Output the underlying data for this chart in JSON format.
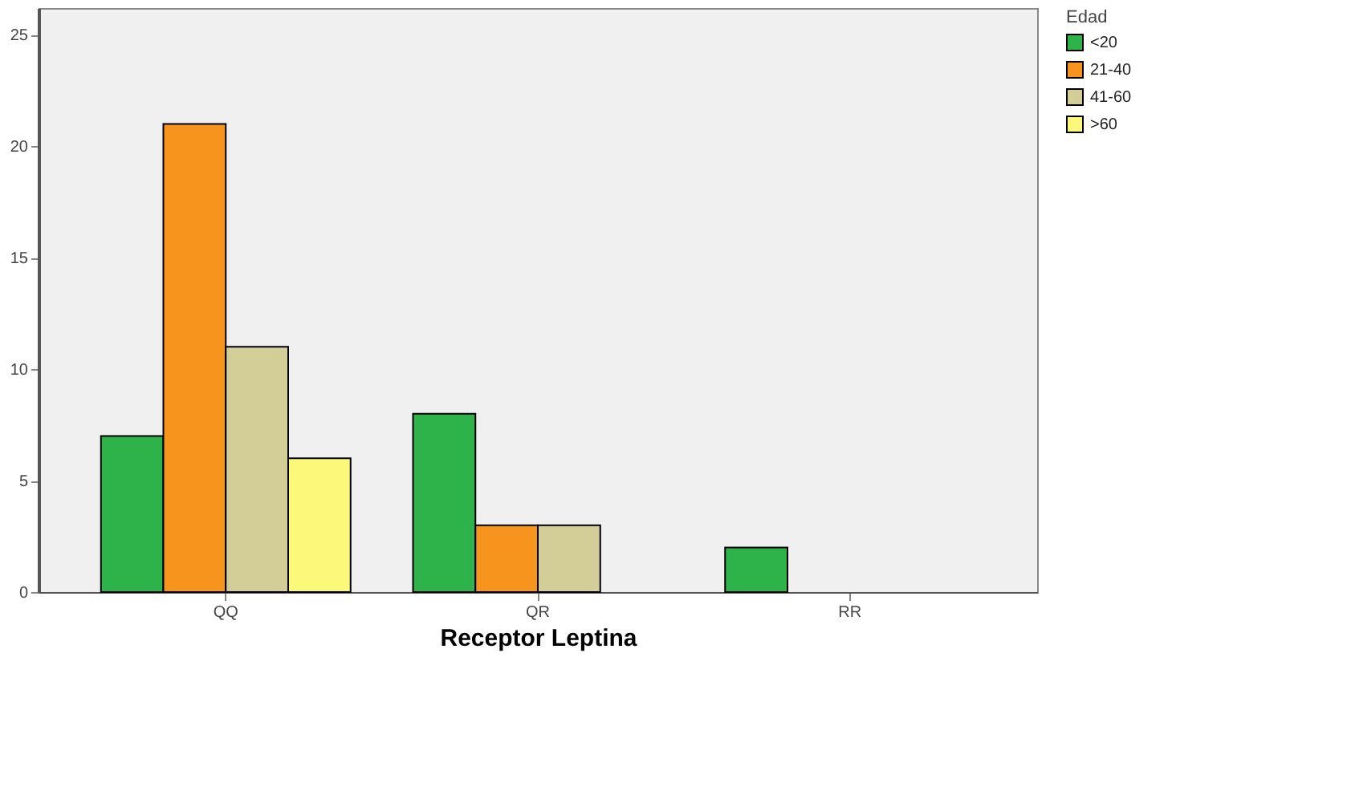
{
  "chart_data": {
    "type": "bar",
    "xlabel": "Receptor Leptina",
    "legend_title": "Edad",
    "categories": [
      "QQ",
      "QR",
      "RR"
    ],
    "series": [
      {
        "name": "<20",
        "color": "#2db34a",
        "values": [
          7,
          8,
          2
        ]
      },
      {
        "name": "21-40",
        "color": "#f7941d",
        "values": [
          21,
          3,
          null
        ]
      },
      {
        "name": "41-60",
        "color": "#d3cd98",
        "values": [
          11,
          3,
          null
        ]
      },
      {
        "name": ">60",
        "color": "#fbf87a",
        "values": [
          6,
          null,
          null
        ]
      }
    ],
    "ylim": [
      0,
      26.2
    ],
    "yticks": [
      0,
      5,
      10,
      15,
      20,
      25
    ],
    "grid": false,
    "legend": "top right"
  }
}
